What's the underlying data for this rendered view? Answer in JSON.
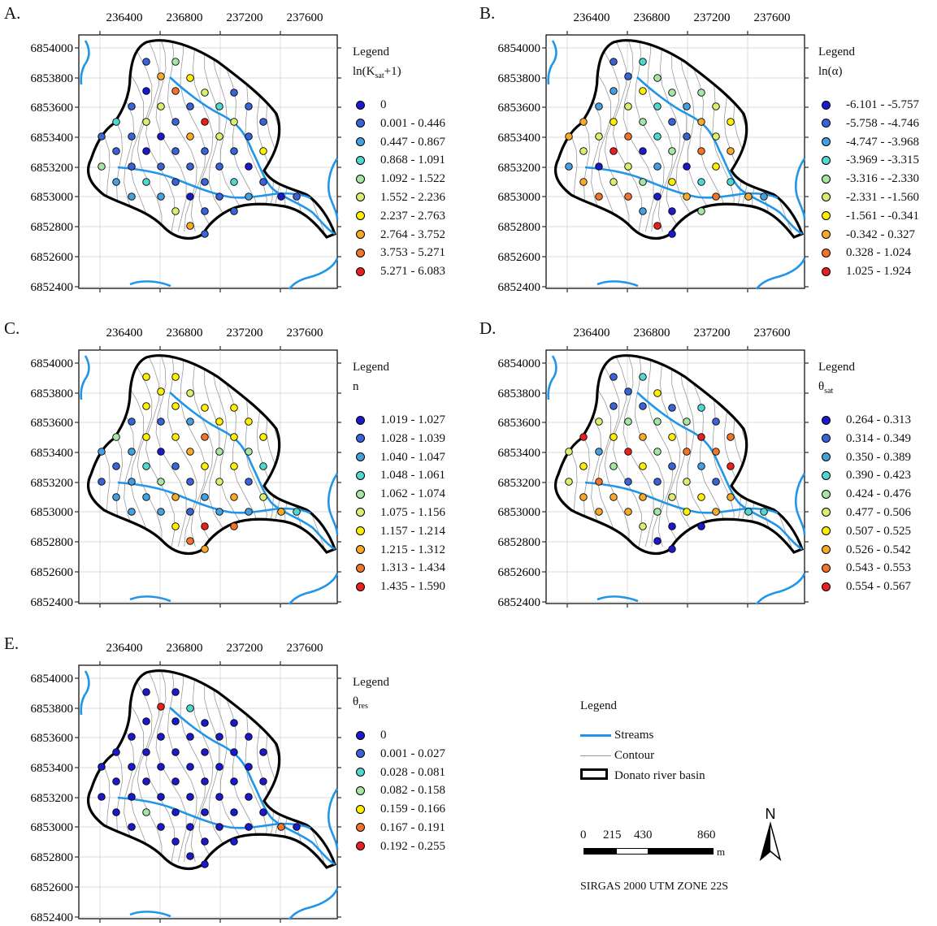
{
  "figure": {
    "axes": {
      "x_ticks": [
        "236400",
        "236800",
        "237200",
        "237600"
      ],
      "y_ticks": [
        "6854000",
        "6853800",
        "6853600",
        "6853400",
        "6853200",
        "6853000",
        "6852800",
        "6852600",
        "6852400"
      ]
    },
    "panels": [
      {
        "letter": "A.",
        "legend_heading": "Legend",
        "var_main": "ln(K",
        "var_sub": "sat",
        "var_tail": "+1)",
        "classes": [
          {
            "label": "0",
            "color": "#1a1acc"
          },
          {
            "label": "0.001 - 0.446",
            "color": "#3b63d8"
          },
          {
            "label": "0.447 - 0.867",
            "color": "#45a0e0"
          },
          {
            "label": "0.868 - 1.091",
            "color": "#4fd7d0"
          },
          {
            "label": "1.092 - 1.522",
            "color": "#a5e6a5"
          },
          {
            "label": "1.552 - 2.236",
            "color": "#dcee6e"
          },
          {
            "label": "2.237 - 2.763",
            "color": "#fff000"
          },
          {
            "label": "2.764 - 3.752",
            "color": "#f7a92a"
          },
          {
            "label": "3.753 - 5.271",
            "color": "#f2732a"
          },
          {
            "label": "5.271 - 6.083",
            "color": "#e8201f"
          }
        ]
      },
      {
        "letter": "B.",
        "legend_heading": "Legend",
        "var_main": "ln(α)",
        "var_sub": "",
        "var_tail": "",
        "classes": [
          {
            "label": "-6.101 - -5.757",
            "color": "#1a1acc"
          },
          {
            "label": "-5.758 - -4.746",
            "color": "#3b63d8"
          },
          {
            "label": "-4.747 - -3.968",
            "color": "#45a0e0"
          },
          {
            "label": "-3.969 - -3.315",
            "color": "#4fd7d0"
          },
          {
            "label": "-3.316 - -2.330",
            "color": "#a5e6a5"
          },
          {
            "label": "-2.331 - -1.560",
            "color": "#dcee6e"
          },
          {
            "label": "-1.561 - -0.341",
            "color": "#fff000"
          },
          {
            "label": "-0.342 - 0.327",
            "color": "#f7a92a"
          },
          {
            "label": "0.328 - 1.024",
            "color": "#f2732a"
          },
          {
            "label": "1.025 - 1.924",
            "color": "#e8201f"
          }
        ]
      },
      {
        "letter": "C.",
        "legend_heading": "Legend",
        "var_main": "n",
        "var_sub": "",
        "var_tail": "",
        "classes": [
          {
            "label": "1.019 - 1.027",
            "color": "#1a1acc"
          },
          {
            "label": "1.028 - 1.039",
            "color": "#3b63d8"
          },
          {
            "label": "1.040 - 1.047",
            "color": "#45a0e0"
          },
          {
            "label": "1.048 - 1.061",
            "color": "#4fd7d0"
          },
          {
            "label": "1.062 - 1.074",
            "color": "#a5e6a5"
          },
          {
            "label": "1.075 - 1.156",
            "color": "#dcee6e"
          },
          {
            "label": "1.157 - 1.214",
            "color": "#fff000"
          },
          {
            "label": "1.215 - 1.312",
            "color": "#f7a92a"
          },
          {
            "label": "1.313 - 1.434",
            "color": "#f2732a"
          },
          {
            "label": "1.435 - 1.590",
            "color": "#e8201f"
          }
        ]
      },
      {
        "letter": "D.",
        "legend_heading": "Legend",
        "var_main": "θ",
        "var_sub": "sat",
        "var_tail": "",
        "classes": [
          {
            "label": "0.264 - 0.313",
            "color": "#1a1acc"
          },
          {
            "label": "0.314 - 0.349",
            "color": "#3b63d8"
          },
          {
            "label": "0.350 - 0.389",
            "color": "#45a0e0"
          },
          {
            "label": "0.390 - 0.423",
            "color": "#4fd7d0"
          },
          {
            "label": "0.424 - 0.476",
            "color": "#a5e6a5"
          },
          {
            "label": "0.477 - 0.506",
            "color": "#dcee6e"
          },
          {
            "label": "0.507 - 0.525",
            "color": "#fff000"
          },
          {
            "label": "0.526 - 0.542",
            "color": "#f7a92a"
          },
          {
            "label": "0.543 - 0.553",
            "color": "#f2732a"
          },
          {
            "label": "0.554 - 0.567",
            "color": "#e8201f"
          }
        ]
      },
      {
        "letter": "E.",
        "legend_heading": "Legend",
        "var_main": "θ",
        "var_sub": "res",
        "var_tail": "",
        "classes": [
          {
            "label": "0",
            "color": "#1a1acc"
          },
          {
            "label": "0.001 - 0.027",
            "color": "#3b63d8"
          },
          {
            "label": "0.028 - 0.081",
            "color": "#4fd7d0"
          },
          {
            "label": "0.082 - 0.158",
            "color": "#a5e6a5"
          },
          {
            "label": "0.159 - 0.166",
            "color": "#fff000"
          },
          {
            "label": "0.167 - 0.191",
            "color": "#f2732a"
          },
          {
            "label": "0.192 - 0.255",
            "color": "#e8201f"
          }
        ]
      }
    ],
    "common_legend": {
      "title": "Legend",
      "streams": "Streams",
      "contour": "Contour",
      "basin": "Donato river basin",
      "stream_color": "#2196e8",
      "contour_color": "#9a9a9a"
    },
    "scale": {
      "labels": [
        "0",
        "215",
        "430",
        "860"
      ],
      "unit": "m"
    },
    "north_label": "N",
    "crs": "SIRGAS 2000 UTM ZONE 22S"
  }
}
